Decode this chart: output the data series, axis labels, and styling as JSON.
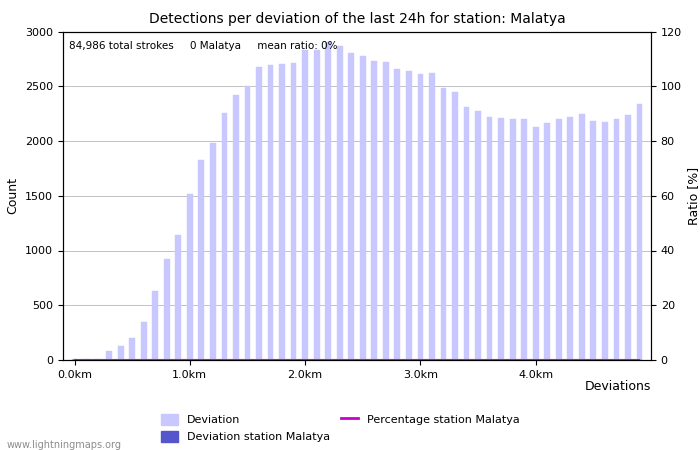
{
  "title": "Detections per deviation of the last 24h for station: Malatya",
  "xlabel": "Deviations",
  "ylabel_left": "Count",
  "ylabel_right": "Ratio [%]",
  "annotation": "84,986 total strokes     0 Malatya     mean ratio: 0%",
  "watermark": "www.lightningmaps.org",
  "ylim_left": [
    0,
    3000
  ],
  "ylim_right": [
    0,
    120
  ],
  "yticks_left": [
    0,
    500,
    1000,
    1500,
    2000,
    2500,
    3000
  ],
  "yticks_right": [
    0,
    20,
    40,
    60,
    80,
    100,
    120
  ],
  "xtick_labels": [
    "0.0km",
    "1.0km",
    "2.0km",
    "3.0km",
    "4.0km"
  ],
  "xtick_positions": [
    0,
    10,
    20,
    30,
    40
  ],
  "bar_width": 0.5,
  "deviation_color": "#c8c8ff",
  "station_color": "#5555cc",
  "ratio_color": "#cc00cc",
  "bg_color": "#ffffff",
  "grid_color": "#aaaaaa",
  "deviation_values": [
    5,
    5,
    5,
    80,
    130,
    200,
    350,
    630,
    920,
    1140,
    1520,
    1830,
    1980,
    2260,
    2420,
    2500,
    2680,
    2690,
    2700,
    2710,
    2830,
    2830,
    2900,
    2870,
    2800,
    2780,
    2730,
    2720,
    2660,
    2640,
    2610,
    2620,
    2480,
    2450,
    2310,
    2270,
    2220,
    2210,
    2200,
    2200,
    2130,
    2160,
    2200,
    2220,
    2250,
    2180,
    2170,
    2200,
    2240,
    2340
  ],
  "station_values": [
    0,
    0,
    0,
    0,
    0,
    0,
    0,
    0,
    0,
    0,
    0,
    0,
    0,
    0,
    0,
    0,
    0,
    0,
    0,
    0,
    0,
    0,
    0,
    0,
    0,
    0,
    0,
    0,
    0,
    0,
    0,
    0,
    0,
    0,
    0,
    0,
    0,
    0,
    0,
    0,
    0,
    0,
    0,
    0,
    0,
    0,
    0,
    0,
    0,
    0
  ],
  "ratio_values": [
    0,
    0,
    0,
    0,
    0,
    0,
    0,
    0,
    0,
    0,
    0,
    0,
    0,
    0,
    0,
    0,
    0,
    0,
    0,
    0,
    0,
    0,
    0,
    0,
    0,
    0,
    0,
    0,
    0,
    0,
    0,
    0,
    0,
    0,
    0,
    0,
    0,
    0,
    0,
    0,
    0,
    0,
    0,
    0,
    0,
    0,
    0,
    0,
    0,
    0
  ]
}
